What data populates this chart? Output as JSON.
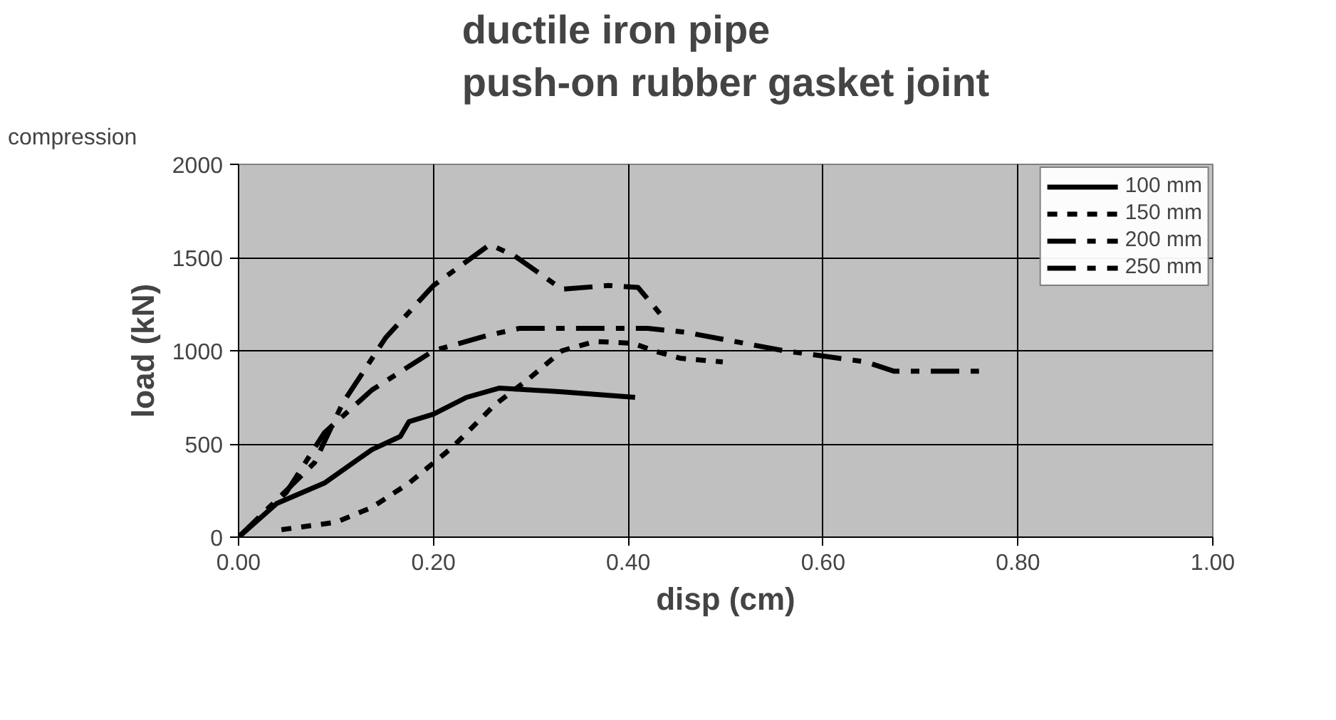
{
  "chart_data": {
    "type": "line",
    "title": "ductile iron pipe\npush-on rubber gasket joint",
    "annotations": [
      "compression"
    ],
    "xlabel": "disp (cm)",
    "ylabel": "load (kN)",
    "xlim": [
      0,
      1
    ],
    "xticks": [
      {
        "value": 0,
        "label": "0.00"
      },
      {
        "value": 0.2,
        "label": "0.20"
      },
      {
        "value": 0.4,
        "label": "0.40"
      },
      {
        "value": 0.6,
        "label": "0.60"
      },
      {
        "value": 0.8,
        "label": "0.80"
      },
      {
        "value": 1,
        "label": "1.00"
      }
    ],
    "ylim": [
      0,
      2000
    ],
    "yticks": [
      0,
      500,
      1000,
      1500,
      2000
    ],
    "grid": true,
    "legend": "top right",
    "marker": "none",
    "series": [
      {
        "name": "100 mm",
        "color": "#000000",
        "line_style": "solid",
        "x": [
          0,
          0.039,
          0.088,
          0.137,
          0.166,
          0.175,
          0.2,
          0.234,
          0.268,
          0.332,
          0.407
        ],
        "values": [
          0,
          180,
          290,
          470,
          540,
          620,
          660,
          750,
          800,
          780,
          750
        ]
      },
      {
        "name": "150 mm",
        "color": "#000000",
        "line_style": "dotted",
        "x": [
          0.044,
          0.1,
          0.137,
          0.175,
          0.219,
          0.263,
          0.298,
          0.332,
          0.366,
          0.405,
          0.426,
          0.453,
          0.497
        ],
        "values": [
          40,
          80,
          160,
          290,
          480,
          710,
          850,
          1000,
          1050,
          1040,
          1000,
          960,
          940
        ]
      },
      {
        "name": "200 mm",
        "color": "#000000",
        "line_style": "dashed",
        "x": [
          0,
          0.049,
          0.078,
          0.107,
          0.151,
          0.2,
          0.258,
          0.283,
          0.332,
          0.38,
          0.41,
          0.434
        ],
        "values": [
          0,
          250,
          400,
          720,
          1070,
          1350,
          1570,
          1510,
          1330,
          1350,
          1340,
          1190
        ]
      },
      {
        "name": "250 mm",
        "color": "#000000",
        "line_style": "dashed",
        "x": [
          0,
          0.049,
          0.088,
          0.137,
          0.2,
          0.254,
          0.288,
          0.356,
          0.42,
          0.458,
          0.56,
          0.644,
          0.673,
          0.76
        ],
        "values": [
          0,
          240,
          560,
          790,
          1000,
          1080,
          1120,
          1120,
          1120,
          1100,
          1000,
          940,
          890,
          890
        ]
      }
    ]
  }
}
